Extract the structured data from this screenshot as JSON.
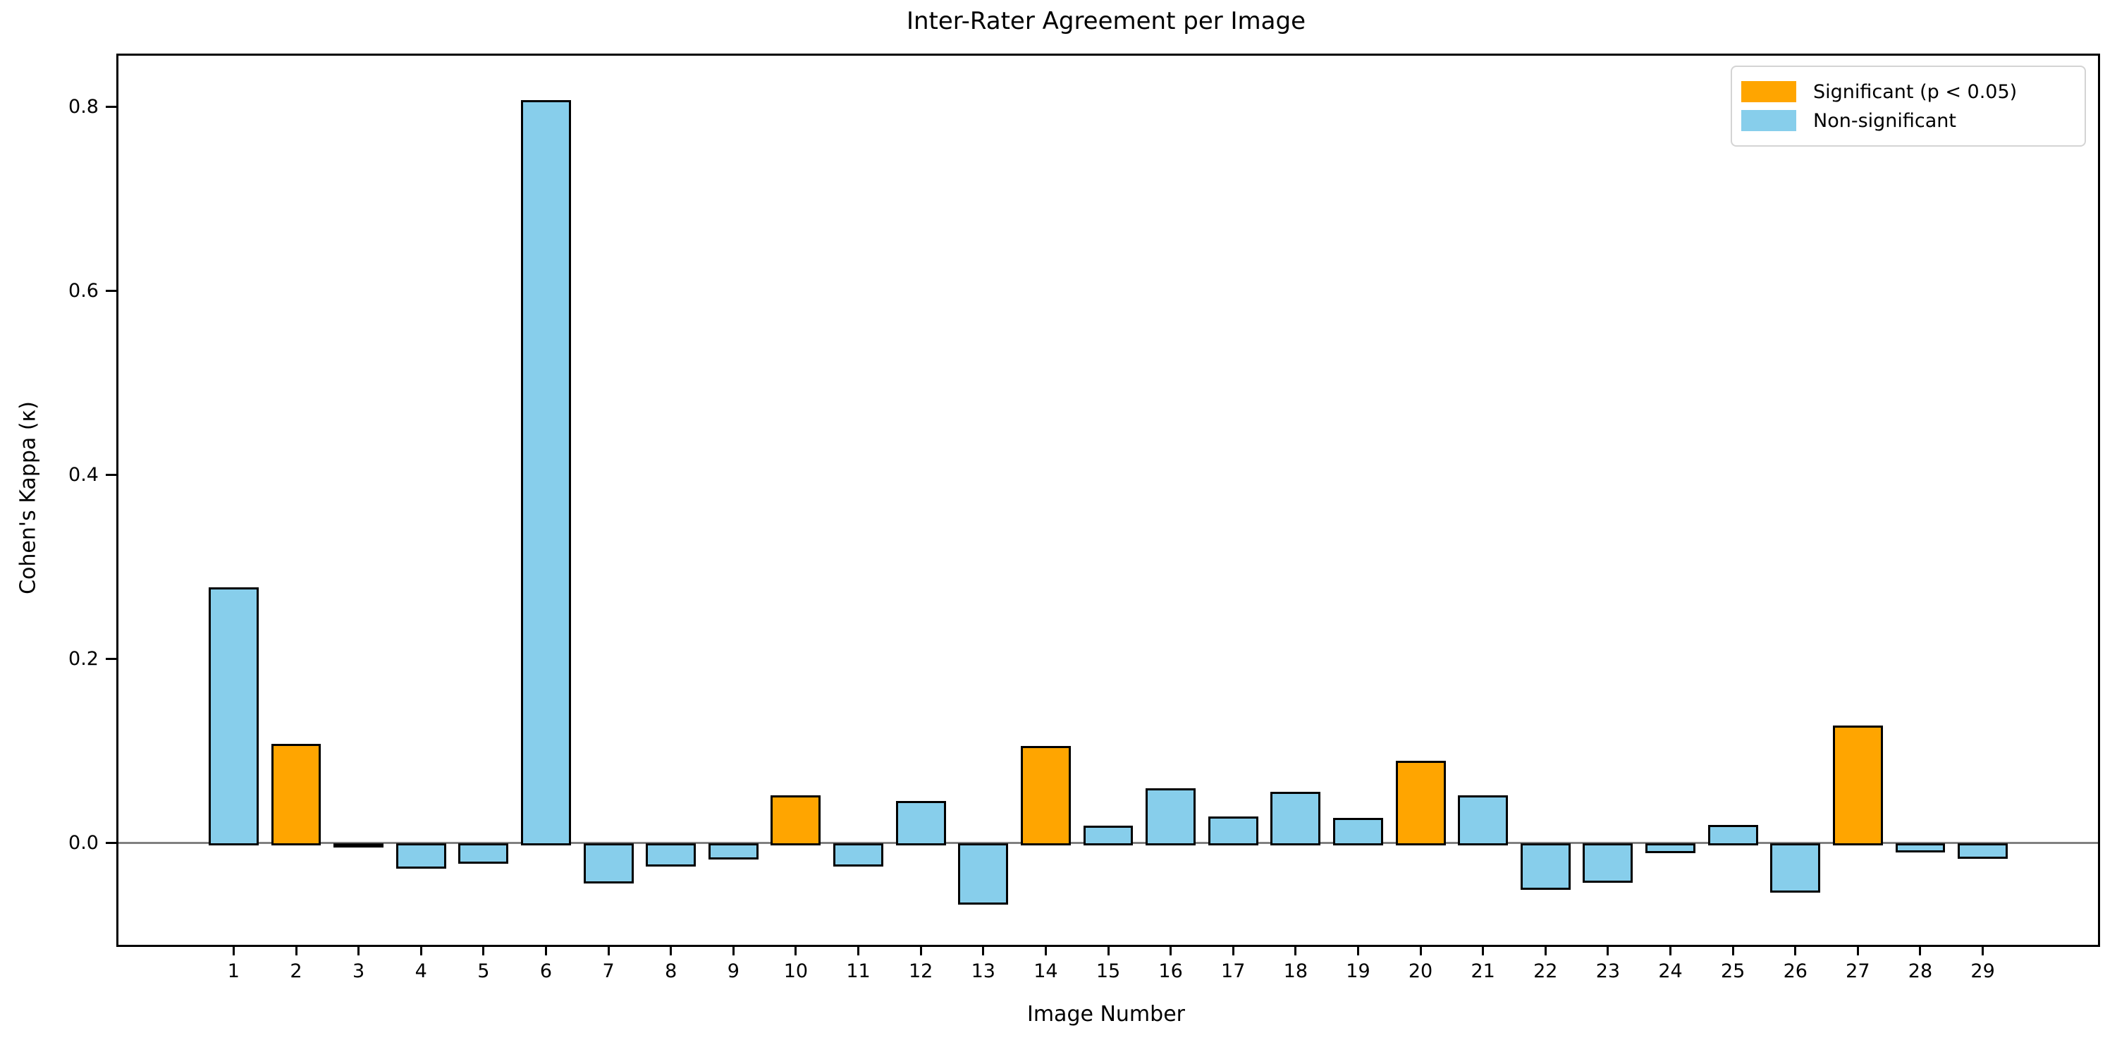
{
  "chart_data": {
    "type": "bar",
    "title": "Inter-Rater Agreement per Image",
    "xlabel": "Image Number",
    "ylabel": "Cohen's Kappa (κ)",
    "categories": [
      1,
      2,
      3,
      4,
      5,
      6,
      7,
      8,
      9,
      10,
      11,
      12,
      13,
      14,
      15,
      16,
      17,
      18,
      19,
      20,
      21,
      22,
      23,
      24,
      25,
      26,
      27,
      28,
      29
    ],
    "values": [
      0.28,
      0.11,
      0.001,
      -0.028,
      -0.022,
      0.81,
      -0.044,
      -0.025,
      -0.018,
      0.054,
      -0.025,
      0.048,
      -0.067,
      0.108,
      0.021,
      0.062,
      0.031,
      0.058,
      0.03,
      0.092,
      0.054,
      -0.051,
      -0.043,
      -0.011,
      0.022,
      -0.054,
      0.13,
      -0.01,
      -0.017
    ],
    "significant_images": [
      2,
      10,
      14,
      20,
      27
    ],
    "yticks": [
      0.0,
      0.2,
      0.4,
      0.6,
      0.8
    ],
    "ytick_labels": [
      "0.0",
      "0.2",
      "0.4",
      "0.6",
      "0.8"
    ],
    "ylim": [
      -0.1104,
      0.8556
    ],
    "xlim": [
      -0.844,
      30.844
    ],
    "bar_width_units": 0.8,
    "grid": false,
    "legend_position": "upper right",
    "colors": {
      "significant": "#FFA500",
      "non_significant": "#87CEEB",
      "bar_edge": "#000000",
      "zero_line": "#808080",
      "spine": "#000000",
      "text": "#000000"
    },
    "legend": {
      "items": [
        {
          "label": "Significant (p < 0.05)",
          "color": "#FFA500"
        },
        {
          "label": "Non-significant",
          "color": "#87CEEB"
        }
      ]
    }
  }
}
